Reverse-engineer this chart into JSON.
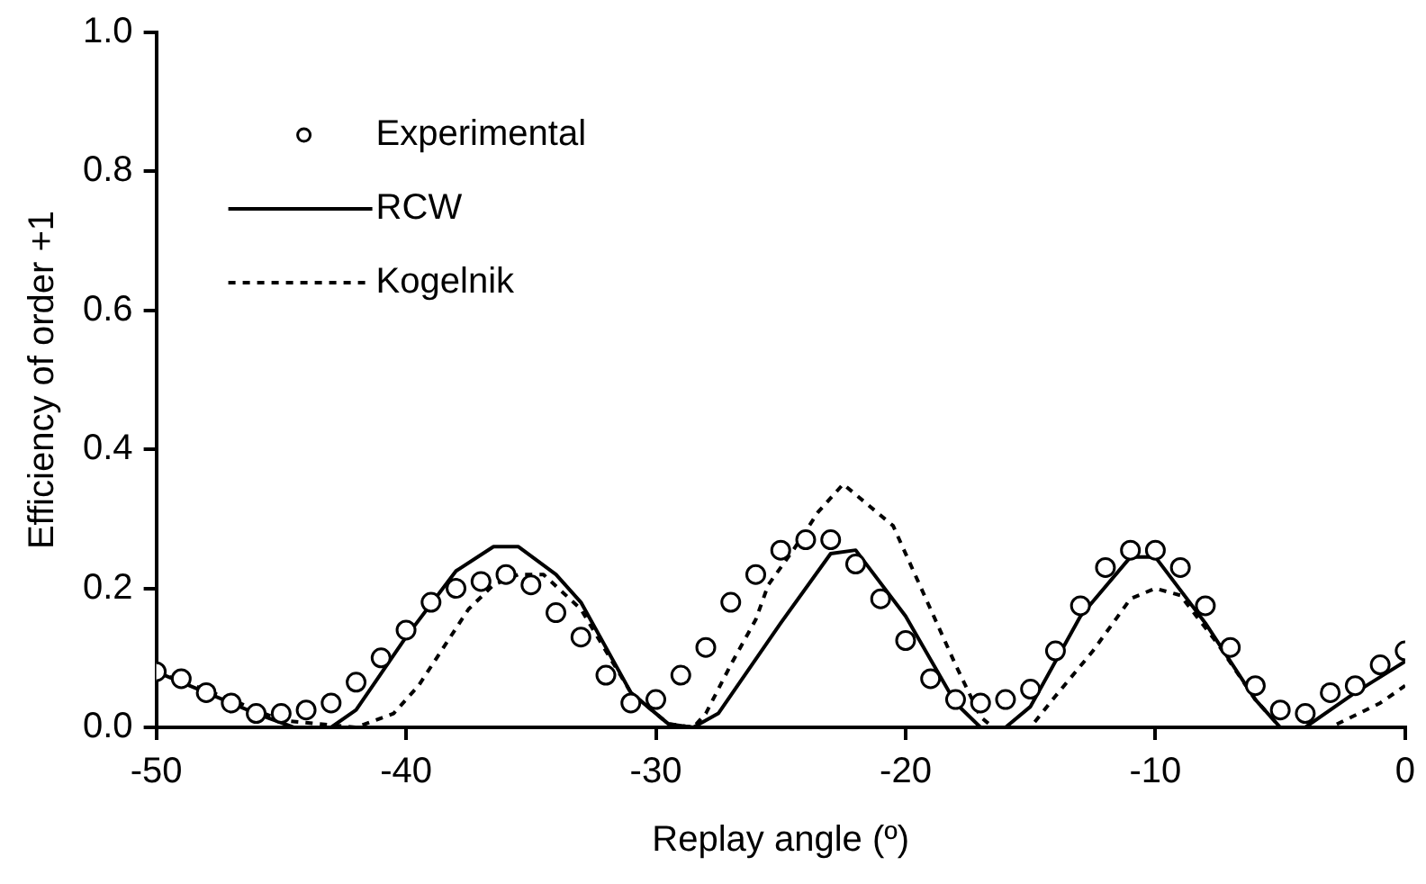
{
  "chart_data": {
    "type": "line",
    "xlabel": "Replay angle (º)",
    "ylabel": "Efficiency of order +1",
    "xlim": [
      -50,
      0
    ],
    "xticks": [
      -50,
      -40,
      -30,
      -20,
      -10,
      0
    ],
    "ylim": [
      0,
      1
    ],
    "yticks": [
      {
        "value": 0,
        "label": "0.0"
      },
      {
        "value": 0.2,
        "label": "0.2"
      },
      {
        "value": 0.4,
        "label": "0.4"
      },
      {
        "value": 0.6,
        "label": "0.6"
      },
      {
        "value": 0.8,
        "label": "0.8"
      },
      {
        "value": 1,
        "label": "1.0"
      }
    ],
    "grid": false,
    "legend": "top left",
    "series": [
      {
        "name": "Experimental",
        "type": "scatter",
        "marker": "circle",
        "color": "#000000",
        "x": [
          -50,
          -49,
          -48,
          -47,
          -46,
          -45,
          -44,
          -43,
          -42,
          -41,
          -40,
          -39,
          -38,
          -37,
          -36,
          -35,
          -34,
          -33,
          -32,
          -31,
          -30,
          -29,
          -28,
          -27,
          -26,
          -25,
          -24,
          -23,
          -22,
          -21,
          -20,
          -19,
          -18,
          -17,
          -16,
          -15,
          -14,
          -13,
          -12,
          -11,
          -10,
          -9,
          -8,
          -7,
          -6,
          -5,
          -4,
          -3,
          -2,
          -1,
          0
        ],
        "values": [
          0.08,
          0.07,
          0.05,
          0.035,
          0.02,
          0.02,
          0.025,
          0.035,
          0.065,
          0.1,
          0.14,
          0.18,
          0.2,
          0.21,
          0.22,
          0.205,
          0.165,
          0.13,
          0.075,
          0.035,
          0.04,
          0.075,
          0.115,
          0.18,
          0.22,
          0.255,
          0.27,
          0.27,
          0.235,
          0.185,
          0.125,
          0.07,
          0.04,
          0.035,
          0.04,
          0.055,
          0.11,
          0.175,
          0.23,
          0.255,
          0.255,
          0.23,
          0.175,
          0.115,
          0.06,
          0.025,
          0.02,
          0.05,
          0.06,
          0.09,
          0.11
        ]
      },
      {
        "name": "RCW",
        "marker": "none",
        "line_style": "solid",
        "color": "#000000",
        "x": [
          -50,
          -48,
          -46,
          -44.5,
          -43,
          -42,
          -40,
          -38,
          -36.5,
          -35.5,
          -34,
          -33,
          -31,
          -29.5,
          -28.5,
          -27.5,
          -25,
          -23,
          -22,
          -20,
          -18,
          -17,
          -16,
          -15,
          -13,
          -11,
          -10,
          -8,
          -6,
          -5,
          -4,
          -2,
          0
        ],
        "values": [
          0.08,
          0.05,
          0.02,
          0,
          0,
          0.025,
          0.13,
          0.225,
          0.26,
          0.26,
          0.22,
          0.18,
          0.05,
          0.005,
          0,
          0.02,
          0.15,
          0.25,
          0.255,
          0.16,
          0.035,
          0,
          0,
          0.03,
          0.16,
          0.245,
          0.245,
          0.15,
          0.04,
          0,
          0,
          0.05,
          0.095
        ]
      },
      {
        "name": "Kogelnik",
        "marker": "none",
        "line_style": "dotted",
        "color": "#000000",
        "x": [
          -50,
          -47,
          -45,
          -42,
          -40.5,
          -39.5,
          -37.5,
          -36.5,
          -35.5,
          -34.5,
          -33,
          -31,
          -29.5,
          -28.5,
          -28,
          -27,
          -26,
          -25.5,
          -24.5,
          -23.5,
          -22.5,
          -20.5,
          -19,
          -18,
          -17,
          -16.5,
          -15,
          -14,
          -12.5,
          -11,
          -10,
          -9,
          -7.5,
          -6,
          -5,
          -3,
          -1,
          0
        ],
        "values": [
          0.08,
          0.04,
          0.01,
          0,
          0.02,
          0.06,
          0.17,
          0.205,
          0.22,
          0.22,
          0.17,
          0.05,
          0.005,
          0,
          0.02,
          0.09,
          0.155,
          0.205,
          0.255,
          0.31,
          0.35,
          0.29,
          0.17,
          0.09,
          0.015,
          0,
          0,
          0.045,
          0.11,
          0.185,
          0.2,
          0.19,
          0.12,
          0.04,
          0,
          0,
          0.035,
          0.06
        ]
      }
    ]
  }
}
